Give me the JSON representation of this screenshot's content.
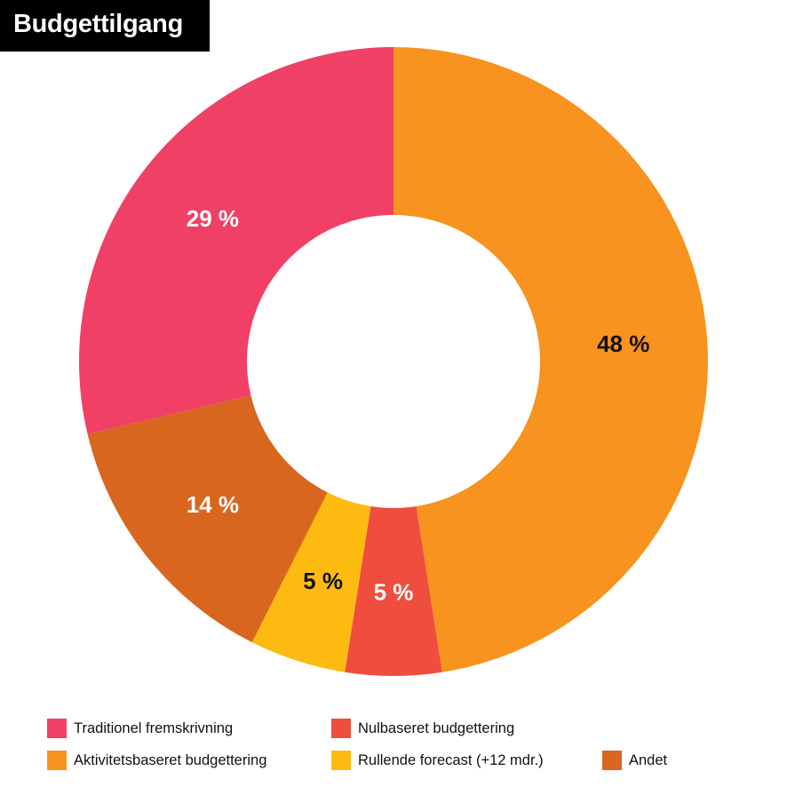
{
  "title": "Budgettilgang",
  "chart_data": {
    "type": "pie",
    "subtype": "donut",
    "title": "Budgettilgang",
    "unit": "%",
    "slices": [
      {
        "label": "Aktivitetsbaseret budgettering",
        "value": 48,
        "display": "48 %",
        "color": "#F7931E",
        "label_color": "#111111"
      },
      {
        "label": "Nulbaseret budgettering",
        "value": 5,
        "display": "5 %",
        "color": "#EF4D3E",
        "label_color": "#ffffff"
      },
      {
        "label": "Rullende forecast (+12 mdr.)",
        "value": 5,
        "display": "5 %",
        "color": "#FDBB12",
        "label_color": "#111111"
      },
      {
        "label": "Andet",
        "value": 14,
        "display": "14 %",
        "color": "#D9661F",
        "label_color": "#ffffff"
      },
      {
        "label": "Traditionel fremskrivning",
        "value": 29,
        "display": "29 %",
        "color": "#F04066",
        "label_color": "#ffffff"
      }
    ],
    "start_angle": 0,
    "direction": "clockwise",
    "legend_position": "bottom"
  },
  "legend": [
    {
      "label": "Traditionel fremskrivning",
      "color": "#F04066"
    },
    {
      "label": "Nulbaseret budgettering",
      "color": "#EF4D3E"
    },
    {
      "label": "Aktivitetsbaseret budgettering",
      "color": "#F7931E"
    },
    {
      "label": "Rullende forecast (+12 mdr.)",
      "color": "#FDBB12"
    },
    {
      "label": "Andet",
      "color": "#D9661F"
    }
  ]
}
